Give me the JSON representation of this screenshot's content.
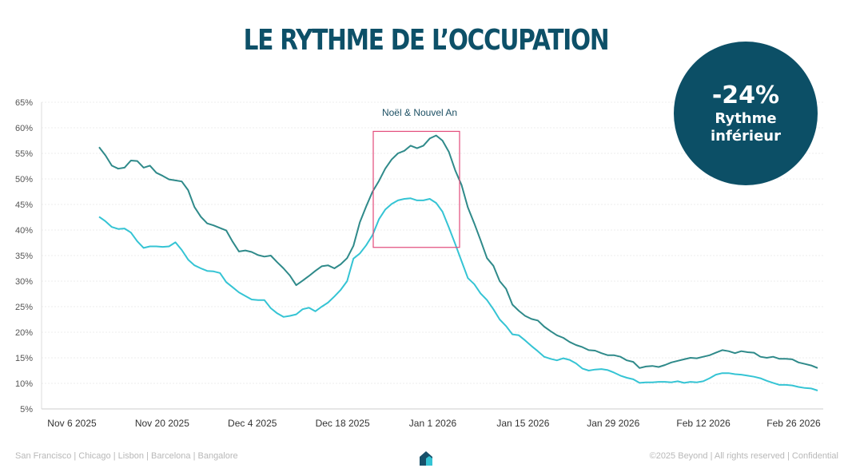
{
  "title": "LE RYTHME DE L’OCCUPATION",
  "badge": {
    "value": "-24%",
    "label": "Rythme inférieur"
  },
  "footer": {
    "left": "San Francisco | Chicago | Lisbon | Barcelona | Bangalore",
    "right": "©2025 Beyond | All rights reserved | Confidential",
    "logo_icon": "house-icon"
  },
  "colors": {
    "title": "#0d5068",
    "series_dark": "#2f8a8a",
    "series_light": "#35c4d4",
    "highlight_box": "#e24a7a",
    "badge": "#0c4f66"
  },
  "chart_data": {
    "type": "line",
    "title": "",
    "xlabel": "",
    "ylabel": "",
    "x_start": "2025-11-06",
    "x_step_days": 1,
    "ylim": [
      0.05,
      0.65
    ],
    "y_ticks": [
      "5%",
      "10%",
      "15%",
      "20%",
      "25%",
      "30%",
      "35%",
      "40%",
      "45%",
      "50%",
      "55%",
      "60%",
      "65%"
    ],
    "y_tick_values": [
      0.05,
      0.1,
      0.15,
      0.2,
      0.25,
      0.3,
      0.35,
      0.4,
      0.45,
      0.5,
      0.55,
      0.6,
      0.65
    ],
    "x_ticks": [
      "Nov 6 2025",
      "Nov 20 2025",
      "Dec 4 2025",
      "Dec 18 2025",
      "Jan 1 2026",
      "Jan 15 2026",
      "Jan 29 2026",
      "Feb 12 2026",
      "Feb 26 2026"
    ],
    "x_tick_days": [
      0,
      14,
      28,
      42,
      56,
      70,
      84,
      98,
      112
    ],
    "grid": true,
    "legend": "none",
    "annotation": {
      "text": "Noël & Nouvel An",
      "x_from_day": 43,
      "x_to_day": 57,
      "y_from": 0.366,
      "y_to": 0.593
    },
    "series": [
      {
        "values": [
          0.562,
          0.546,
          0.526,
          0.52,
          0.522,
          0.536,
          0.535,
          0.522,
          0.526,
          0.512,
          0.506,
          0.499,
          0.497,
          0.495,
          0.478,
          0.445,
          0.426,
          0.413,
          0.409,
          0.404,
          0.399,
          0.377,
          0.358,
          0.36,
          0.357,
          0.351,
          0.348,
          0.35,
          0.337,
          0.325,
          0.311,
          0.292,
          0.301,
          0.31,
          0.32,
          0.329,
          0.331,
          0.325,
          0.333,
          0.345,
          0.369,
          0.415,
          0.446,
          0.475,
          0.496,
          0.52,
          0.538,
          0.55,
          0.555,
          0.565,
          0.56,
          0.565,
          0.579,
          0.585,
          0.575,
          0.553,
          0.517,
          0.488,
          0.444,
          0.413,
          0.38,
          0.345,
          0.33,
          0.3,
          0.285,
          0.254,
          0.242,
          0.232,
          0.226,
          0.223,
          0.211,
          0.202,
          0.194,
          0.189,
          0.181,
          0.175,
          0.171,
          0.165,
          0.164,
          0.159,
          0.155,
          0.155,
          0.152,
          0.145,
          0.142,
          0.13,
          0.133,
          0.134,
          0.132,
          0.136,
          0.141,
          0.144,
          0.147,
          0.15,
          0.149,
          0.152,
          0.155,
          0.16,
          0.165,
          0.163,
          0.159,
          0.163,
          0.161,
          0.16,
          0.152,
          0.15,
          0.152,
          0.148,
          0.148,
          0.147,
          0.141,
          0.138,
          0.135,
          0.13
        ],
        "color": "#2f8a8a"
      },
      {
        "values": [
          0.426,
          0.417,
          0.406,
          0.402,
          0.403,
          0.395,
          0.378,
          0.365,
          0.368,
          0.368,
          0.367,
          0.368,
          0.376,
          0.361,
          0.342,
          0.331,
          0.325,
          0.32,
          0.319,
          0.316,
          0.298,
          0.288,
          0.278,
          0.271,
          0.264,
          0.263,
          0.263,
          0.247,
          0.237,
          0.23,
          0.232,
          0.235,
          0.245,
          0.248,
          0.241,
          0.25,
          0.258,
          0.27,
          0.283,
          0.3,
          0.344,
          0.354,
          0.37,
          0.39,
          0.421,
          0.44,
          0.451,
          0.458,
          0.461,
          0.462,
          0.458,
          0.458,
          0.461,
          0.453,
          0.436,
          0.405,
          0.373,
          0.339,
          0.306,
          0.294,
          0.276,
          0.263,
          0.245,
          0.225,
          0.212,
          0.196,
          0.194,
          0.184,
          0.173,
          0.163,
          0.152,
          0.148,
          0.145,
          0.149,
          0.146,
          0.139,
          0.129,
          0.125,
          0.127,
          0.128,
          0.126,
          0.121,
          0.115,
          0.111,
          0.108,
          0.101,
          0.102,
          0.102,
          0.103,
          0.103,
          0.102,
          0.104,
          0.101,
          0.103,
          0.102,
          0.104,
          0.11,
          0.117,
          0.12,
          0.12,
          0.118,
          0.117,
          0.115,
          0.113,
          0.11,
          0.105,
          0.101,
          0.097,
          0.097,
          0.096,
          0.093,
          0.091,
          0.09,
          0.086
        ],
        "color": "#35c4d4"
      }
    ]
  }
}
